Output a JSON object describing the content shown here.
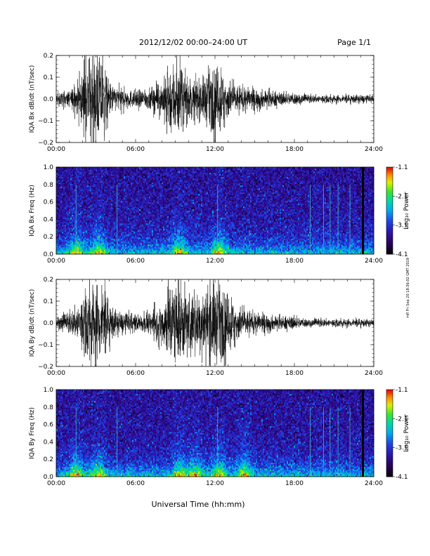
{
  "header": {
    "title": "2012/12/02   00:00–24:00 UT",
    "page": "Page 1/1"
  },
  "footer": {
    "xlabel": "Universal Time (hh:mm)"
  },
  "side_note": "mfl Fri Sep 20 18:36:02 GMT 2019",
  "colorbar": {
    "label": "Log₁₀ Power",
    "ticks": [
      "-1.1",
      "-2.1",
      "-3.1",
      "-4.1"
    ],
    "tick_values": [
      -1.1,
      -2.1,
      -3.1,
      -4.1
    ],
    "range": [
      -4.1,
      -1.1
    ]
  },
  "chart_data": [
    {
      "type": "line",
      "ylabel": "IQA Bx dB/dt (nT/sec)",
      "x_ticks": [
        "00:00",
        "06:00",
        "12:00",
        "18:00",
        "24:00"
      ],
      "y_ticks": [
        "0.2",
        "0.1",
        "0.0",
        "−0.1",
        "−0.2"
      ],
      "y_tick_values": [
        0.2,
        0.1,
        0.0,
        -0.1,
        -0.2
      ],
      "xlim_hours": [
        0,
        24
      ],
      "ylim": [
        -0.2,
        0.2
      ],
      "envelope": {
        "hours": [
          0,
          1,
          1.5,
          2,
          2.5,
          3,
          3.5,
          4,
          4.5,
          5,
          6,
          7,
          8,
          8.5,
          9,
          9.5,
          10,
          10.5,
          11,
          11.5,
          12,
          12.5,
          13,
          13.5,
          14,
          15,
          16,
          17,
          18,
          19,
          20,
          21,
          22,
          23,
          24
        ],
        "amplitude": [
          0.03,
          0.04,
          0.07,
          0.12,
          0.2,
          0.2,
          0.2,
          0.08,
          0.06,
          0.05,
          0.04,
          0.05,
          0.08,
          0.15,
          0.2,
          0.14,
          0.1,
          0.09,
          0.1,
          0.14,
          0.15,
          0.14,
          0.09,
          0.07,
          0.06,
          0.05,
          0.04,
          0.03,
          0.03,
          0.02,
          0.02,
          0.02,
          0.02,
          0.02,
          0.015
        ]
      }
    },
    {
      "type": "heatmap",
      "ylabel": "IQA Bx Freq (Hz)",
      "x_ticks": [
        "00:00",
        "06:00",
        "12:00",
        "18:00",
        "24:00"
      ],
      "y_ticks": [
        "1.0",
        "0.8",
        "0.6",
        "0.4",
        "0.2",
        "0.0"
      ],
      "y_tick_values": [
        1.0,
        0.8,
        0.6,
        0.4,
        0.2,
        0.0
      ],
      "xlim_hours": [
        0,
        24
      ],
      "ylim": [
        0,
        1.0
      ],
      "activity_hours": [
        1.5,
        3.2,
        9.3,
        12.3
      ],
      "vertical_lines_hours": [
        1.5,
        4.6,
        12.2,
        19.2,
        20.2,
        20.7,
        21.3,
        22.2
      ],
      "data_gap_hours": 23.1
    },
    {
      "type": "line",
      "ylabel": "IQA By dB/dt (nT/sec)",
      "x_ticks": [
        "00:00",
        "06:00",
        "12:00",
        "18:00",
        "24:00"
      ],
      "y_ticks": [
        "0.2",
        "0.1",
        "0.0",
        "−0.1",
        "−0.2"
      ],
      "y_tick_values": [
        0.2,
        0.1,
        0.0,
        -0.1,
        -0.2
      ],
      "xlim_hours": [
        0,
        24
      ],
      "ylim": [
        -0.2,
        0.2
      ],
      "envelope": {
        "hours": [
          0,
          1,
          1.5,
          2,
          2.5,
          3,
          3.5,
          4,
          4.5,
          5,
          6,
          7,
          8,
          8.5,
          9,
          9.5,
          10,
          10.5,
          11,
          11.5,
          12,
          12.5,
          13,
          13.5,
          14,
          15,
          16,
          17,
          18,
          19,
          20,
          21,
          22,
          23,
          24
        ],
        "amplitude": [
          0.03,
          0.05,
          0.08,
          0.14,
          0.2,
          0.2,
          0.2,
          0.1,
          0.06,
          0.05,
          0.04,
          0.05,
          0.1,
          0.2,
          0.2,
          0.18,
          0.16,
          0.13,
          0.14,
          0.18,
          0.2,
          0.17,
          0.13,
          0.1,
          0.07,
          0.05,
          0.04,
          0.03,
          0.03,
          0.02,
          0.02,
          0.02,
          0.02,
          0.02,
          0.015
        ]
      }
    },
    {
      "type": "heatmap",
      "ylabel": "IQA By Freq (Hz)",
      "x_ticks": [
        "00:00",
        "06:00",
        "12:00",
        "18:00",
        "24:00"
      ],
      "y_ticks": [
        "1.0",
        "0.8",
        "0.6",
        "0.4",
        "0.2",
        "0.0"
      ],
      "y_tick_values": [
        1.0,
        0.8,
        0.6,
        0.4,
        0.2,
        0.0
      ],
      "xlim_hours": [
        0,
        24
      ],
      "ylim": [
        0,
        1.0
      ],
      "activity_hours": [
        1.5,
        3.2,
        9.3,
        10.5,
        12.3,
        14.2
      ],
      "vertical_lines_hours": [
        1.5,
        4.6,
        12.2,
        19.2,
        20.2,
        20.7,
        21.3,
        22.2
      ],
      "data_gap_hours": 23.1
    }
  ]
}
